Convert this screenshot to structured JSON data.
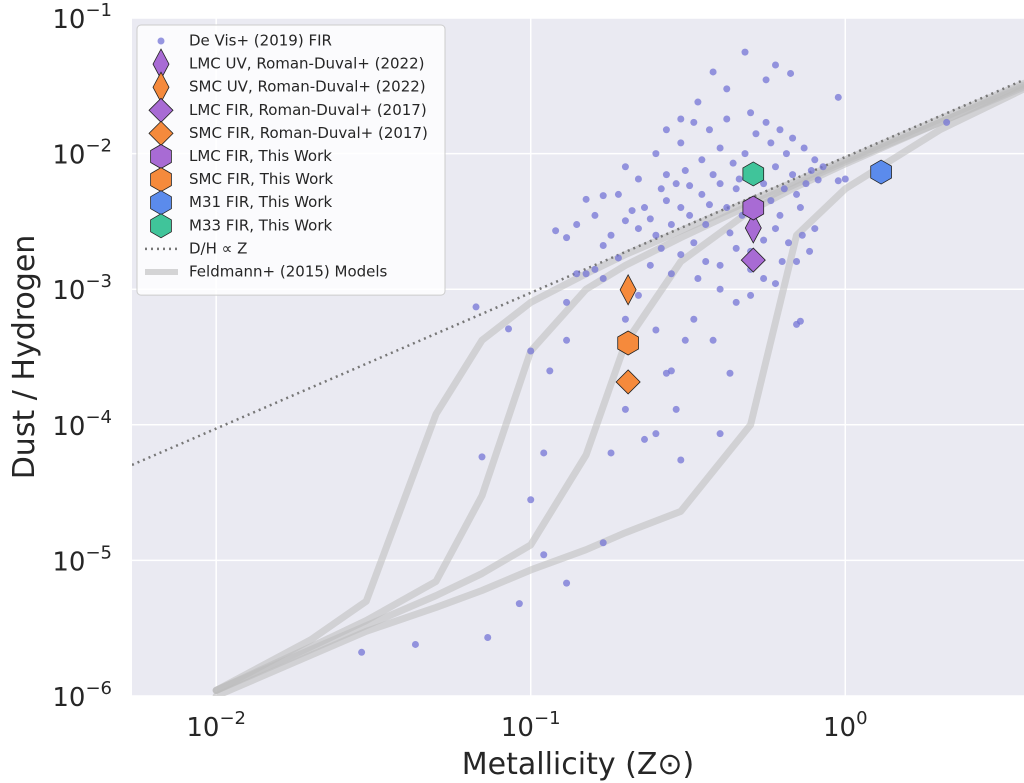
{
  "chart_data": {
    "type": "scatter",
    "xlabel": "Metallicity (Z⊙)",
    "ylabel": "Dust / Hydrogen",
    "xscale": "log",
    "yscale": "log",
    "grid": true,
    "legend": "upper left",
    "xlim": [
      0.0054,
      3.7
    ],
    "ylim": [
      1e-06,
      0.1
    ],
    "xticks": [
      {
        "value": 0.01,
        "label": "10−2"
      },
      {
        "value": 0.1,
        "label": "10−1"
      },
      {
        "value": 1,
        "label": "100"
      }
    ],
    "yticks": [
      {
        "value": 1e-06,
        "label": "10−6"
      },
      {
        "value": 1e-05,
        "label": "10−5"
      },
      {
        "value": 0.0001,
        "label": "10−4"
      },
      {
        "value": 0.001,
        "label": "10−3"
      },
      {
        "value": 0.01,
        "label": "10−2"
      },
      {
        "value": 0.1,
        "label": "10−1"
      }
    ],
    "series": [
      {
        "name": "De Vis+ (2019) FIR",
        "color": "#7474d6",
        "marker": "o",
        "x": [
          0.029,
          0.043,
          0.073,
          0.092,
          0.13,
          0.11,
          0.1,
          0.17,
          0.07,
          0.11,
          0.18,
          0.3,
          0.23,
          0.25,
          0.4,
          0.29,
          0.2,
          0.1,
          0.115,
          0.085,
          0.067,
          0.13,
          0.2,
          0.27,
          0.28,
          0.43,
          0.38,
          0.33,
          0.31,
          0.25,
          0.7,
          0.13,
          0.15,
          0.17,
          0.22,
          0.48,
          0.6,
          0.38,
          0.67,
          0.95,
          2.1,
          0.42,
          0.56,
          0.3,
          0.34,
          1.0,
          0.95,
          0.82,
          0.8,
          0.7,
          0.72,
          0.3,
          0.32,
          0.35,
          0.28,
          0.25,
          0.27,
          0.4,
          0.42,
          0.45,
          0.38,
          0.36,
          0.33,
          0.3,
          0.26,
          0.22,
          0.2,
          0.18,
          0.17,
          0.19,
          0.24,
          0.28,
          0.34,
          0.4,
          0.45,
          0.5,
          0.55,
          0.6,
          0.62,
          0.58,
          0.55,
          0.6,
          0.65,
          0.58,
          0.52,
          0.48,
          0.44,
          0.4,
          0.35,
          0.31,
          0.29,
          0.26,
          0.23,
          0.21,
          0.16,
          0.15,
          0.17,
          0.14,
          0.13,
          0.12,
          0.16,
          0.14,
          0.7,
          0.72,
          0.75,
          0.68,
          0.66,
          0.63,
          0.55,
          0.5,
          0.45,
          0.4,
          0.36,
          0.52,
          0.47,
          0.43,
          0.37,
          0.32,
          0.27,
          0.25,
          0.3,
          0.37,
          0.42,
          0.5,
          0.56,
          0.62,
          0.68,
          0.74,
          0.8,
          0.85,
          0.78,
          0.33,
          0.27,
          0.2,
          0.22,
          0.19,
          0.24,
          0.46,
          0.53,
          0.64,
          0.73,
          0.77,
          0.6,
          0.5
        ],
        "values": [
          2.1e-06,
          2.4e-06,
          2.7e-06,
          4.8e-06,
          6.8e-06,
          1.1e-05,
          2.8e-05,
          1.35e-05,
          5.8e-05,
          6.2e-05,
          6.2e-05,
          5.5e-05,
          7.8e-05,
          8.6e-05,
          8.6e-05,
          0.00013,
          0.00013,
          0.00035,
          0.00025,
          0.00051,
          0.00074,
          0.00042,
          0.0006,
          0.00024,
          0.00025,
          0.00024,
          0.00042,
          0.0006,
          0.00042,
          0.0005,
          0.00055,
          0.0008,
          0.0013,
          0.0012,
          0.0009,
          0.056,
          0.045,
          0.04,
          0.039,
          0.026,
          0.017,
          0.03,
          0.035,
          0.018,
          0.024,
          0.0065,
          0.0063,
          0.0064,
          0.0028,
          0.0016,
          0.00058,
          0.004,
          0.0035,
          0.005,
          0.003,
          0.0025,
          0.0045,
          0.006,
          0.004,
          0.0055,
          0.007,
          0.003,
          0.0022,
          0.0018,
          0.002,
          0.0028,
          0.0032,
          0.0025,
          0.0021,
          0.0017,
          0.0015,
          0.0013,
          0.0012,
          0.0015,
          0.002,
          0.0019,
          0.0023,
          0.0028,
          0.0035,
          0.0045,
          0.006,
          0.008,
          0.01,
          0.012,
          0.014,
          0.01,
          0.0085,
          0.011,
          0.009,
          0.0075,
          0.006,
          0.0055,
          0.004,
          0.0038,
          0.0035,
          0.0046,
          0.0049,
          0.003,
          0.0024,
          0.0027,
          0.0014,
          0.0013,
          0.005,
          0.004,
          0.006,
          0.007,
          0.0022,
          0.0016,
          0.0012,
          0.0009,
          0.0008,
          0.001,
          0.0016,
          0.003,
          0.0035,
          0.0026,
          0.0042,
          0.0058,
          0.007,
          0.01,
          0.012,
          0.015,
          0.018,
          0.02,
          0.017,
          0.015,
          0.013,
          0.011,
          0.009,
          0.008,
          0.0075,
          0.017,
          0.015,
          0.008,
          0.0065,
          0.005,
          0.0033,
          0.0065,
          0.0075,
          0.0055,
          0.0025,
          0.0019,
          0.0011,
          0.0014
        ]
      },
      {
        "name": "LMC UV, Roman-Duval+ (2022)",
        "color": "#a86bd4",
        "marker": "d",
        "x": [
          0.51
        ],
        "values": [
          0.00283
        ]
      },
      {
        "name": "SMC UV, Roman-Duval+ (2022)",
        "color": "#f58a3c",
        "marker": "d",
        "x": [
          0.204
        ],
        "values": [
          0.00099
        ]
      },
      {
        "name": "LMC FIR, Roman-Duval+ (2017)",
        "color": "#a86bd4",
        "marker": "D",
        "x": [
          0.51
        ],
        "values": [
          0.00164
        ]
      },
      {
        "name": "SMC FIR, Roman-Duval+ (2017)",
        "color": "#f58a3c",
        "marker": "D",
        "x": [
          0.204
        ],
        "values": [
          0.000207
        ]
      },
      {
        "name": "LMC FIR, This Work",
        "color": "#a86bd4",
        "marker": "h",
        "x": [
          0.51
        ],
        "values": [
          0.00397
        ]
      },
      {
        "name": "SMC FIR, This Work",
        "color": "#f58a3c",
        "marker": "h",
        "x": [
          0.204
        ],
        "values": [
          0.000401
        ]
      },
      {
        "name": "M31 FIR, This Work",
        "color": "#5b8bec",
        "marker": "h",
        "x": [
          1.3
        ],
        "values": [
          0.00731
        ]
      },
      {
        "name": "M33 FIR, This Work",
        "color": "#40c49a",
        "marker": "h",
        "x": [
          0.51
        ],
        "values": [
          0.00708
        ]
      },
      {
        "name": "D/H ∝ Z",
        "color": "#777777",
        "style": "dotted",
        "x": [
          0.0054,
          3.7
        ],
        "values": [
          5.06e-05,
          0.035
        ]
      },
      {
        "name": "Feldmann+ (2015) Models",
        "color": "#bbbbbb",
        "style": "line",
        "x": [
          0.01,
          0.02,
          0.03,
          0.05,
          0.07,
          0.1,
          0.15,
          0.2,
          0.3,
          0.5,
          0.7,
          1,
          2,
          3.7
        ],
        "curves": [
          [
            1.1e-06,
            2.6e-06,
            5e-06,
            0.00012,
            0.00042,
            0.0008,
            0.0013,
            0.0018,
            0.0027,
            0.0045,
            0.0063,
            0.009,
            0.018,
            0.033
          ],
          [
            1.1e-06,
            2.3e-06,
            3.6e-06,
            7e-06,
            3e-05,
            0.00035,
            0.001,
            0.0015,
            0.0024,
            0.0042,
            0.006,
            0.0087,
            0.017,
            0.032
          ],
          [
            1.1e-06,
            2.2e-06,
            3.3e-06,
            5.5e-06,
            8e-06,
            1.3e-05,
            6e-05,
            0.0004,
            0.0016,
            0.0038,
            0.0057,
            0.0084,
            0.017,
            0.031
          ],
          [
            1e-06,
            2e-06,
            3e-06,
            4.5e-06,
            6e-06,
            8.5e-06,
            1.2e-05,
            1.6e-05,
            2.3e-05,
            0.0001,
            0.0025,
            0.0055,
            0.015,
            0.03
          ]
        ]
      }
    ]
  }
}
